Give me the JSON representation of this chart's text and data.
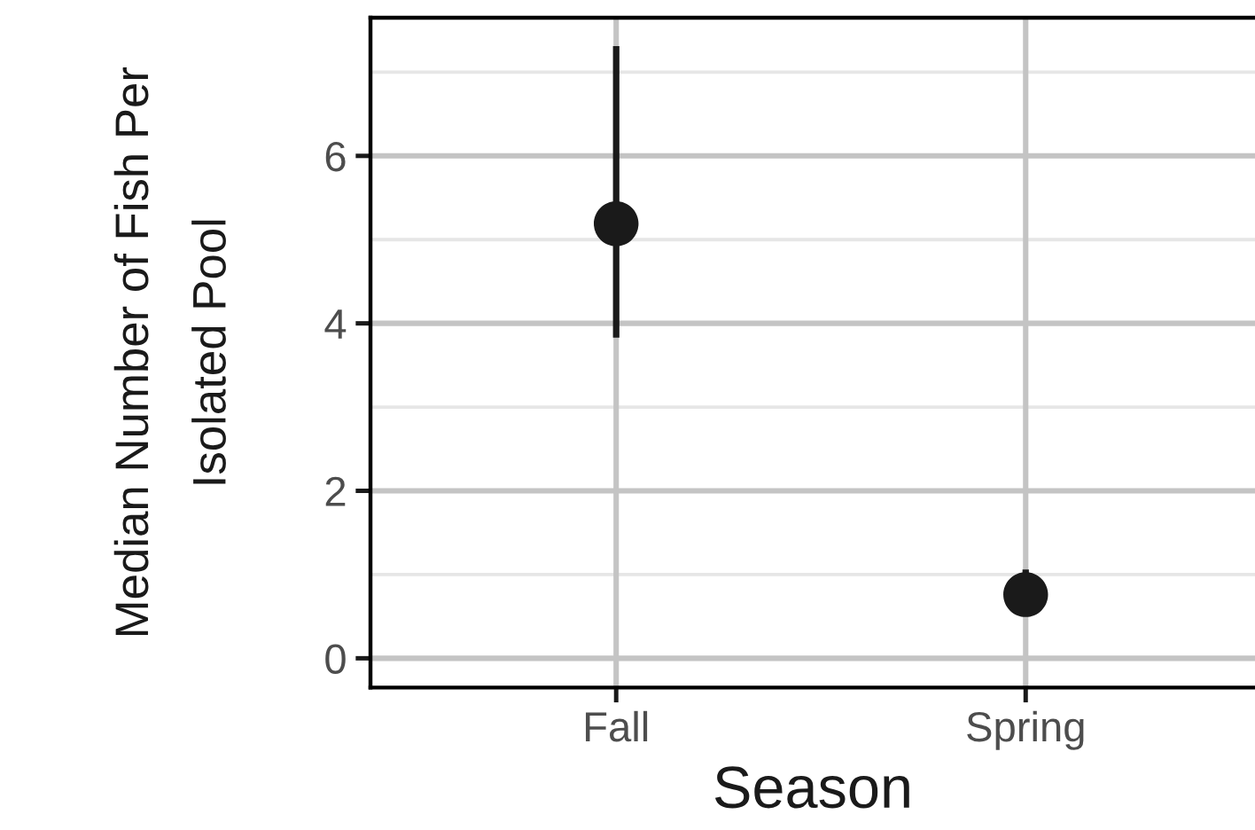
{
  "chart_data": {
    "type": "scatter",
    "xlabel": "Season",
    "ylabel": "Median Number of Fish Per\nIsolated Pool",
    "categories": [
      "Fall",
      "Spring"
    ],
    "series": [
      {
        "color": "#1a1a1a",
        "values": [
          5.19,
          0.76
        ],
        "errors": [
          [
            3.83,
            7.31
          ],
          [
            0.76,
            1.06
          ]
        ]
      }
    ],
    "ylim": [
      -0.35,
      7.65
    ],
    "yticks": [
      0,
      2,
      4,
      6
    ],
    "grid": true,
    "marker": "circle"
  }
}
